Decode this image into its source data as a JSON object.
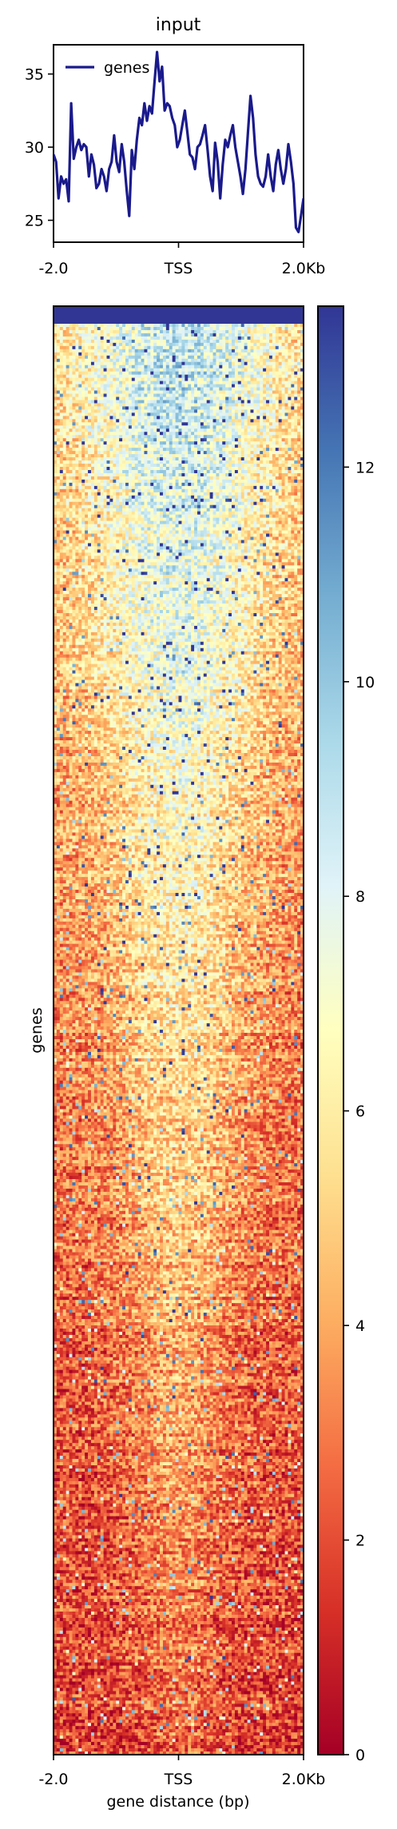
{
  "chart_data": [
    {
      "type": "line",
      "title": "input",
      "x_tick_labels": [
        "-2.0",
        "TSS",
        "2.0Kb"
      ],
      "y_ticks": [
        25,
        30,
        35
      ],
      "ylim": [
        23.5,
        37
      ],
      "legend": {
        "placement": "top-left"
      },
      "series": [
        {
          "name": "genes",
          "color": "#1a1a8c",
          "x": [
            0,
            1,
            2,
            3,
            4,
            5,
            6,
            7,
            8,
            9,
            10,
            11,
            12,
            13,
            14,
            15,
            16,
            17,
            18,
            19,
            20,
            21,
            22,
            23,
            24,
            25,
            26,
            27,
            28,
            29,
            30,
            31,
            32,
            33,
            34,
            35,
            36,
            37,
            38,
            39,
            40,
            41,
            42,
            43,
            44,
            45,
            46,
            47,
            48,
            49,
            50,
            51,
            52,
            53,
            54,
            55,
            56,
            57,
            58,
            59,
            60,
            61,
            62,
            63,
            64,
            65,
            66,
            67,
            68,
            69,
            70,
            71,
            72,
            73,
            74,
            75,
            76,
            77,
            78,
            79,
            80,
            81,
            82,
            83,
            84,
            85,
            86,
            87,
            88,
            89,
            90,
            91,
            92,
            93,
            94,
            95,
            96,
            97,
            98,
            99
          ],
          "values": [
            29.5,
            29.0,
            26.5,
            28.0,
            27.5,
            27.8,
            26.3,
            33.0,
            29.2,
            30.0,
            30.5,
            29.8,
            30.2,
            30.0,
            28.0,
            29.5,
            28.8,
            27.2,
            27.5,
            28.5,
            28.0,
            27.0,
            28.5,
            29.0,
            30.8,
            29.0,
            28.3,
            30.2,
            29.0,
            27.0,
            25.3,
            29.8,
            28.5,
            30.5,
            32.0,
            31.5,
            33.0,
            31.8,
            32.8,
            32.3,
            34.5,
            36.5,
            34.5,
            35.5,
            32.5,
            33.0,
            32.8,
            32.0,
            31.5,
            30.0,
            30.5,
            31.5,
            32.5,
            31.0,
            29.5,
            29.3,
            28.5,
            30.0,
            30.2,
            30.8,
            31.5,
            29.8,
            28.0,
            27.0,
            30.3,
            29.0,
            26.5,
            28.8,
            30.5,
            30.0,
            30.8,
            31.5,
            30.0,
            29.0,
            28.0,
            26.8,
            28.5,
            31.0,
            33.5,
            32.0,
            29.5,
            28.0,
            27.5,
            27.3,
            28.0,
            29.5,
            28.0,
            27.0,
            28.8,
            29.8,
            28.5,
            27.5,
            28.5,
            30.2,
            29.0,
            27.5,
            24.5,
            24.2,
            25.3,
            26.5
          ]
        }
      ]
    },
    {
      "type": "heatmap",
      "y_label": "genes",
      "x_label": "gene distance (bp)",
      "x_tick_labels": [
        "-2.0",
        "TSS",
        "2.0Kb"
      ],
      "colorbar": {
        "min": 0,
        "max": 13.5,
        "ticks": [
          0,
          2,
          4,
          6,
          8,
          10,
          12
        ],
        "colormap": "RdYlBu"
      },
      "top_summary_row_value": 13.5
    }
  ]
}
